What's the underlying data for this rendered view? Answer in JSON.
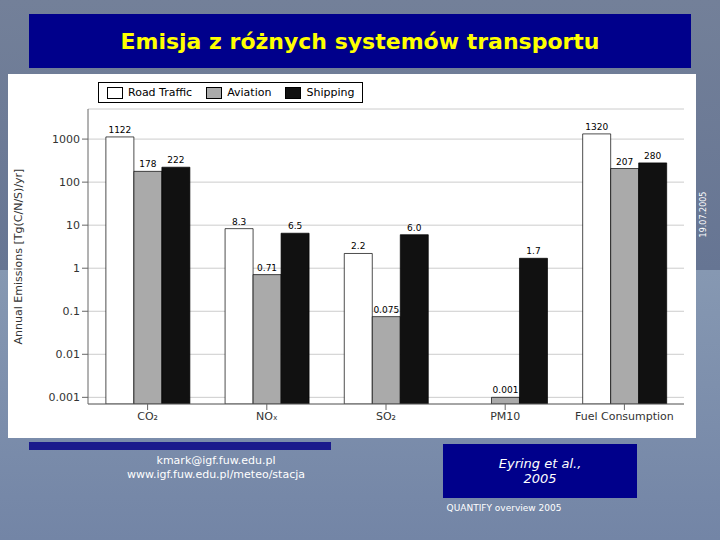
{
  "chart_data": {
    "type": "bar",
    "title": "Emisja z różnych systemów transportu",
    "y_label": "Annual Emissions [Tg(C/N/S)/yr]",
    "categories": [
      "CO₂",
      "NOₓ",
      "SO₂",
      "PM10",
      "Fuel Consumption"
    ],
    "series": [
      {
        "name": "Road Traffic",
        "color": "#FFFFFF",
        "values": [
          1122,
          8.3,
          2.2,
          null,
          1320
        ],
        "value_labels": [
          "1122",
          "8.3",
          "2.2",
          null,
          "1320"
        ]
      },
      {
        "name": "Aviation",
        "color": "#AAAAAA",
        "values": [
          178,
          0.71,
          0.075,
          0.001,
          207
        ],
        "value_labels": [
          "178",
          "0.71",
          "0.075",
          "0.001",
          "207"
        ]
      },
      {
        "name": "Shipping",
        "color": "#111111",
        "values": [
          222,
          6.5,
          6.0,
          1.7,
          280
        ],
        "value_labels": [
          "222",
          "6.5",
          "6.0",
          "1.7",
          "280"
        ]
      }
    ],
    "log": "y",
    "ylim": [
      0.0007,
      5000
    ],
    "yticks": [
      0.001,
      0.01,
      0.1,
      1,
      10,
      100,
      1000
    ],
    "grid": true,
    "legend": "upper left",
    "data_labels": true,
    "annotations": [
      "Eyring et al.,\n2005",
      "kmark@igf.fuw.edu.pl\nwww.igf.fuw.edu.pl/meteo/stacja",
      "QUANTIFY overview 2005",
      "19.07.2005"
    ]
  }
}
